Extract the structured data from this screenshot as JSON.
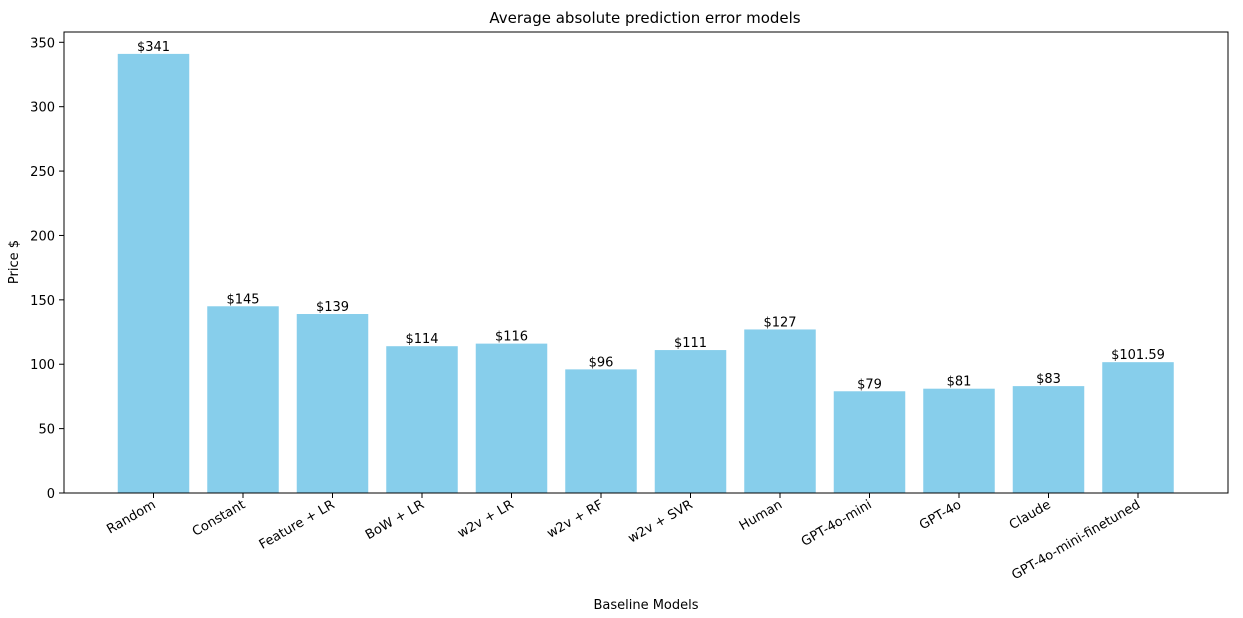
{
  "chart_data": {
    "type": "bar",
    "title": "Average absolute prediction error models",
    "xlabel": "Baseline Models",
    "ylabel": "Price $",
    "ylim": [
      0,
      358
    ],
    "yticks": [
      0,
      50,
      100,
      150,
      200,
      250,
      300,
      350
    ],
    "categories": [
      "Random",
      "Constant",
      "Feature + LR",
      "BoW + LR",
      "w2v + LR",
      "w2v + RF",
      "w2v + SVR",
      "Human",
      "GPT-4o-mini",
      "GPT-4o",
      "Claude",
      "GPT-4o-mini-finetuned"
    ],
    "values": [
      341,
      145,
      139,
      114,
      116,
      96,
      111,
      127,
      79,
      81,
      83,
      101.59
    ],
    "value_labels": [
      "$341",
      "$145",
      "$139",
      "$114",
      "$116",
      "$96",
      "$111",
      "$127",
      "$79",
      "$81",
      "$83",
      "$101.59"
    ],
    "bar_color": "#87CEEB",
    "grid": false,
    "legend": "none"
  }
}
